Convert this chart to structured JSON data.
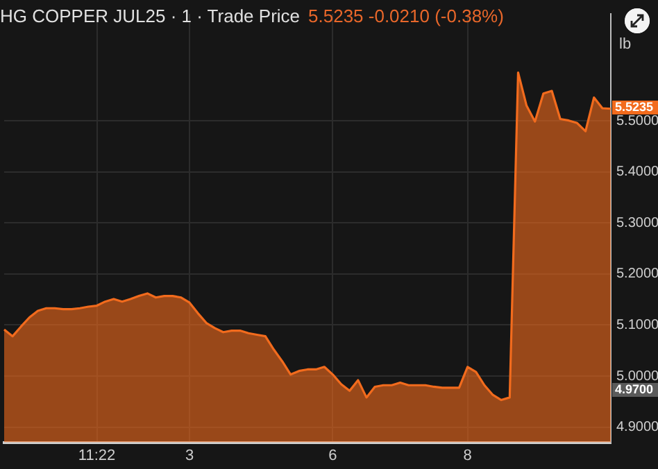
{
  "chart_data": {
    "type": "area",
    "title": "HG COPPER JUL25 · 1 · Trade Price",
    "subtitle": "5.5235 -0.0210 (-0.38%)",
    "categories": [
      null,
      null,
      null,
      null,
      null,
      null,
      null,
      null,
      null,
      null,
      null,
      "11:22",
      null,
      null,
      null,
      null,
      null,
      null,
      null,
      null,
      null,
      null,
      "3",
      null,
      null,
      null,
      null,
      null,
      null,
      null,
      null,
      null,
      null,
      null,
      null,
      null,
      null,
      null,
      null,
      "6",
      null,
      null,
      null,
      null,
      null,
      null,
      null,
      null,
      null,
      null,
      null,
      null,
      null,
      null,
      null,
      "8",
      null,
      null,
      null,
      null,
      null,
      null,
      null,
      null,
      null,
      null,
      null,
      null,
      null,
      null,
      null,
      null,
      null
    ],
    "series": [
      {
        "color": "#f26b1d",
        "values": [
          5.091,
          5.078,
          5.097,
          5.115,
          5.128,
          5.133,
          5.133,
          5.131,
          5.131,
          5.133,
          5.136,
          5.138,
          5.146,
          5.151,
          5.146,
          5.151,
          5.157,
          5.162,
          5.154,
          5.157,
          5.157,
          5.154,
          5.144,
          5.123,
          5.104,
          5.094,
          5.086,
          5.089,
          5.089,
          5.084,
          5.081,
          5.078,
          5.052,
          5.029,
          5.003,
          5.01,
          5.013,
          5.013,
          5.018,
          5.003,
          4.984,
          4.971,
          4.992,
          4.958,
          4.979,
          4.982,
          4.982,
          4.987,
          4.982,
          4.982,
          4.982,
          4.979,
          4.977,
          4.977,
          4.977,
          5.018,
          5.008,
          4.982,
          4.963,
          4.953,
          4.958,
          5.595,
          5.53,
          5.499,
          5.554,
          5.559,
          5.504,
          5.501,
          5.496,
          5.48,
          5.546,
          5.525,
          5.524
        ]
      }
    ],
    "ylim": [
      4.87,
      5.71
    ],
    "yticks": [
      {
        "value": 4.9,
        "label": "4.9000"
      },
      {
        "value": 5.0,
        "label": "5.0000"
      },
      {
        "value": 5.1,
        "label": "5.1000"
      },
      {
        "value": 5.2,
        "label": "5.2000"
      },
      {
        "value": 5.3,
        "label": "5.3000"
      },
      {
        "value": 5.4,
        "label": "5.4000"
      },
      {
        "value": 5.5,
        "label": "5.5000"
      }
    ],
    "annotations": [
      {
        "text": "5.5235",
        "y": 5.5235
      },
      {
        "text": "4.9700",
        "y": 4.97
      },
      "lb"
    ],
    "grid": true,
    "legend": false
  }
}
